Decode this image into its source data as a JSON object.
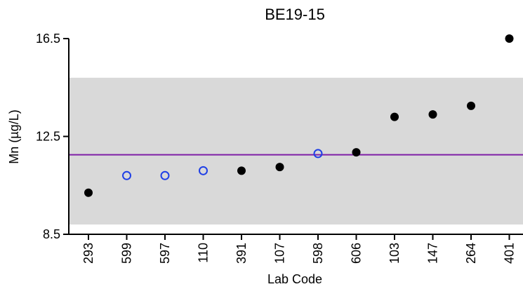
{
  "chart_data": {
    "type": "scatter",
    "title": "BE19-15",
    "xlabel": "Lab Code",
    "ylabel": "Mn (µg/L)",
    "ylim": [
      8.5,
      16.5
    ],
    "yticks": [
      "8.5",
      "12.5",
      "16.5"
    ],
    "categories": [
      "293",
      "599",
      "597",
      "110",
      "391",
      "107",
      "598",
      "606",
      "103",
      "147",
      "264",
      "401"
    ],
    "values": [
      10.2,
      10.9,
      10.9,
      11.1,
      11.1,
      11.25,
      11.8,
      11.85,
      13.3,
      13.4,
      13.75,
      16.5
    ],
    "marker_style": [
      "filled",
      "open",
      "open",
      "open",
      "filled",
      "filled",
      "open",
      "filled",
      "filled",
      "filled",
      "filled",
      "filled"
    ],
    "reference_line": 11.75,
    "acceptance_band": [
      8.9,
      14.9
    ],
    "colors": {
      "band": "#d9d9d9",
      "reference_line": "#7f1fa6",
      "filled_marker": "#000000",
      "open_marker": "#1f3fe6",
      "axis": "#000000"
    },
    "grid": false,
    "legend": "none"
  }
}
